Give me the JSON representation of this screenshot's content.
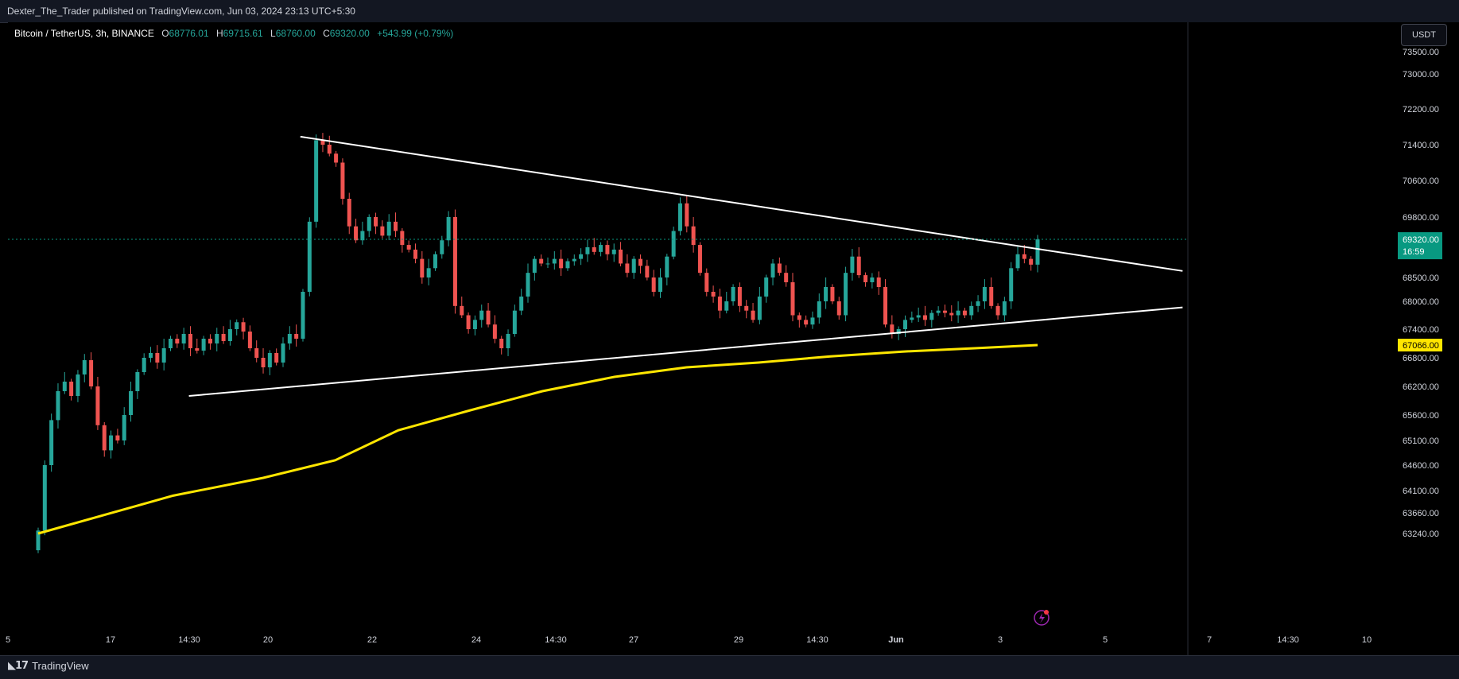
{
  "header": {
    "published_by": "Dexter_The_Trader published on TradingView.com, Jun 03, 2024 23:13 UTC+5:30"
  },
  "legend": {
    "symbol": "Bitcoin / TetherUS, 3h, BINANCE",
    "o_label": "O",
    "o_value": "68776.01",
    "h_label": "H",
    "h_value": "69715.61",
    "l_label": "L",
    "l_value": "68760.00",
    "c_label": "C",
    "c_value": "69320.00",
    "change": "+543.99 (+0.79%)"
  },
  "toolbar": {
    "currency": "USDT"
  },
  "footer": {
    "brand": "TradingView"
  },
  "colors": {
    "up": "#26a69a",
    "down": "#ef5350",
    "ma": "#ffe600",
    "trendline": "#ffffff",
    "last_price_bg": "#089981"
  },
  "chart_data": {
    "type": "candlestick",
    "title": "Bitcoin / TetherUS, 3h, BINANCE",
    "price_ticks": [
      "73500.00",
      "73000.00",
      "72200.00",
      "71400.00",
      "70600.00",
      "69800.00",
      "68500.00",
      "68000.00",
      "67400.00",
      "66800.00",
      "66200.00",
      "65600.00",
      "65100.00",
      "64600.00",
      "64100.00",
      "63660.00",
      "63240.00"
    ],
    "x_ticks": [
      "5",
      "17",
      "14:30",
      "20",
      "22",
      "24",
      "14:30",
      "27",
      "29",
      "14:30",
      "Jun",
      "3",
      "5",
      "7",
      "14:30",
      "10"
    ],
    "last_price": {
      "value": "69320.00",
      "countdown": "16:59"
    },
    "ma_label": "67066.00",
    "closes": [
      63300,
      64600,
      65500,
      66100,
      66300,
      66000,
      66450,
      66750,
      66200,
      65400,
      64900,
      65200,
      65100,
      65600,
      66100,
      66500,
      66800,
      66900,
      66700,
      67000,
      67200,
      67100,
      67300,
      67000,
      66950,
      67200,
      67100,
      67300,
      67150,
      67400,
      67550,
      67350,
      67000,
      66800,
      66600,
      66900,
      66700,
      67100,
      67300,
      67200,
      68200,
      69700,
      71500,
      71400,
      71200,
      71000,
      70200,
      69600,
      69300,
      69500,
      69800,
      69600,
      69400,
      69700,
      69500,
      69200,
      69100,
      68900,
      68500,
      68700,
      69000,
      69300,
      69800,
      67900,
      67700,
      67400,
      67600,
      67800,
      67500,
      67200,
      67000,
      67300,
      67800,
      68100,
      68600,
      68900,
      68800,
      68800,
      68900,
      68700,
      68850,
      68900,
      69000,
      69150,
      69050,
      69200,
      69000,
      69100,
      68800,
      68600,
      68900,
      68750,
      68500,
      68200,
      68500,
      68950,
      69500,
      70100,
      69600,
      69200,
      68600,
      68200,
      68100,
      67800,
      68000,
      68300,
      67900,
      67800,
      67600,
      68100,
      68500,
      68800,
      68600,
      68400,
      67700,
      67600,
      67500,
      67650,
      68000,
      68300,
      68000,
      67700,
      68600,
      68950,
      68550,
      68400,
      68500,
      68300,
      67500,
      67300,
      67400,
      67600,
      67650,
      67700,
      67600,
      67750,
      67800,
      67750,
      67700,
      67800,
      67700,
      67900,
      68000,
      68300,
      67900,
      67700,
      68000,
      68700,
      69000,
      68900,
      68776,
      69320
    ],
    "ma": [
      [
        0,
        63240
      ],
      [
        150,
        64000
      ],
      [
        250,
        64350
      ],
      [
        330,
        64700
      ],
      [
        400,
        65300
      ],
      [
        480,
        65700
      ],
      [
        560,
        66100
      ],
      [
        640,
        66400
      ],
      [
        720,
        66600
      ],
      [
        800,
        66700
      ],
      [
        880,
        66830
      ],
      [
        960,
        66930
      ],
      [
        1040,
        67000
      ],
      [
        1110,
        67066
      ]
    ],
    "trendlines": [
      {
        "name": "upper",
        "from": [
          320,
          71580
        ],
        "to": [
          1270,
          68640
        ]
      },
      {
        "name": "lower",
        "from": [
          200,
          66000
        ],
        "to": [
          1270,
          67870
        ]
      }
    ]
  }
}
